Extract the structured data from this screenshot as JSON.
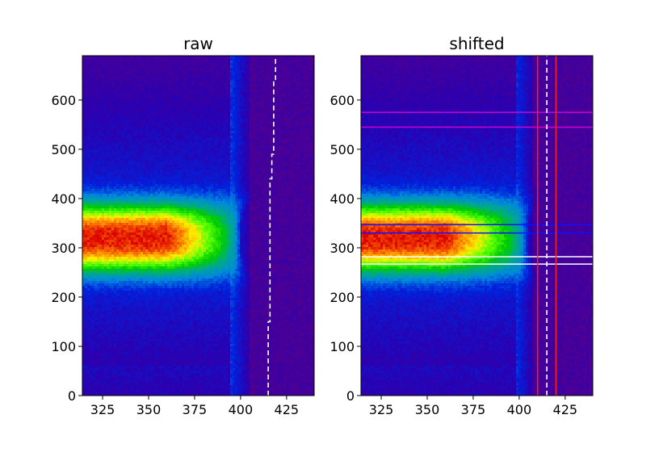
{
  "chart_data": [
    {
      "type": "heatmap",
      "title": "raw",
      "xlabel": "",
      "ylabel": "",
      "xlim": [
        314,
        440
      ],
      "ylim": [
        0,
        690
      ],
      "x_ticks": [
        325,
        350,
        375,
        400,
        425
      ],
      "y_ticks": [
        0,
        100,
        200,
        300,
        400,
        500,
        600
      ],
      "colormap": "nipy_spectral",
      "beam_center_y": 320,
      "beam_half_width_y": 55,
      "beam_fade_x": [
        360,
        400
      ],
      "background_edge_x": 405,
      "dashed_line": {
        "color": "#ffffff",
        "points": [
          [
            415,
            0
          ],
          [
            415,
            150
          ],
          [
            416,
            150
          ],
          [
            416,
            440
          ],
          [
            417,
            440
          ],
          [
            417,
            490
          ],
          [
            418,
            490
          ],
          [
            418,
            640
          ],
          [
            419,
            640
          ],
          [
            419,
            690
          ]
        ]
      },
      "horizontal_lines": [],
      "vertical_lines": []
    },
    {
      "type": "heatmap",
      "title": "shifted",
      "xlabel": "",
      "ylabel": "",
      "xlim": [
        314,
        440
      ],
      "ylim": [
        0,
        690
      ],
      "x_ticks": [
        325,
        350,
        375,
        400,
        425
      ],
      "y_ticks": [
        0,
        100,
        200,
        300,
        400,
        500,
        600
      ],
      "colormap": "nipy_spectral",
      "beam_center_y": 320,
      "beam_half_width_y": 55,
      "beam_fade_x": [
        360,
        405
      ],
      "background_edge_x": 408,
      "dashed_line": {
        "color": "#ffffff",
        "points": [
          [
            415,
            0
          ],
          [
            415,
            690
          ]
        ]
      },
      "horizontal_lines": [
        {
          "y": 575,
          "color": "#d000d0"
        },
        {
          "y": 545,
          "color": "#d000d0"
        },
        {
          "y": 347,
          "color": "#1010ff"
        },
        {
          "y": 330,
          "color": "#1010ff"
        },
        {
          "y": 282,
          "color": "#ffffff"
        },
        {
          "y": 267,
          "color": "#ffffff"
        }
      ],
      "vertical_lines": [
        {
          "x": 410,
          "color": "#ff2020"
        },
        {
          "x": 420,
          "color": "#ff2020"
        }
      ]
    }
  ]
}
